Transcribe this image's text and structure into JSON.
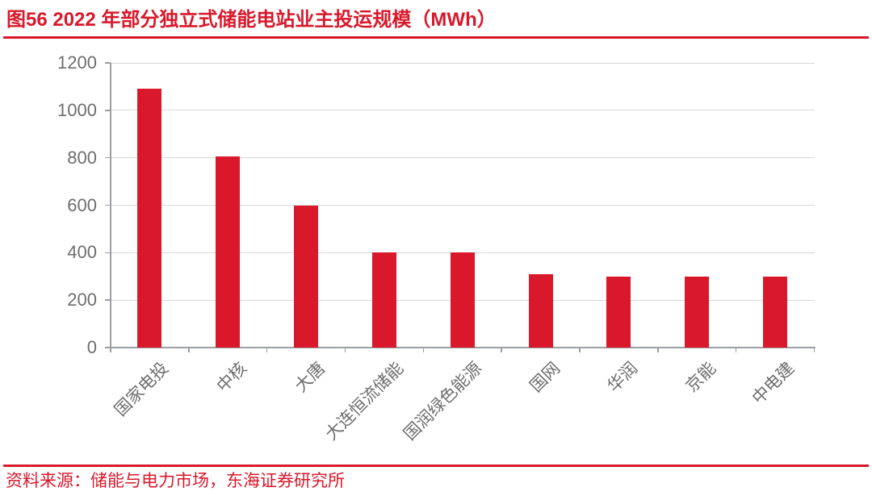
{
  "header": {
    "title": "图56  2022 年部分独立式储能电站业主投运规模（MWh）"
  },
  "footer": {
    "text": "资料来源：储能与电力市场，东海证券研究所"
  },
  "colors": {
    "accent_red": "#D9182B",
    "bar_red": "#D9182B",
    "gridline": "#D9D9D9",
    "axis": "#9B9FA1",
    "tick_label": "#6E6E6E"
  },
  "chart_data": {
    "type": "bar",
    "title": "2022 年部分独立式储能电站业主投运规模（MWh）",
    "categories": [
      "国家电投",
      "中核",
      "大唐",
      "大连恒流储能",
      "国润绿色能源",
      "国网",
      "华润",
      "京能",
      "中电建"
    ],
    "values": [
      1090,
      805,
      600,
      400,
      400,
      310,
      300,
      300,
      300
    ],
    "xlabel": "",
    "ylabel": "",
    "ylim": [
      0,
      1200
    ],
    "yticks": [
      0,
      200,
      400,
      600,
      800,
      1000,
      1200
    ],
    "grid": true,
    "legend": "none",
    "bar_color": "#D9182B",
    "unit": "MWh"
  }
}
